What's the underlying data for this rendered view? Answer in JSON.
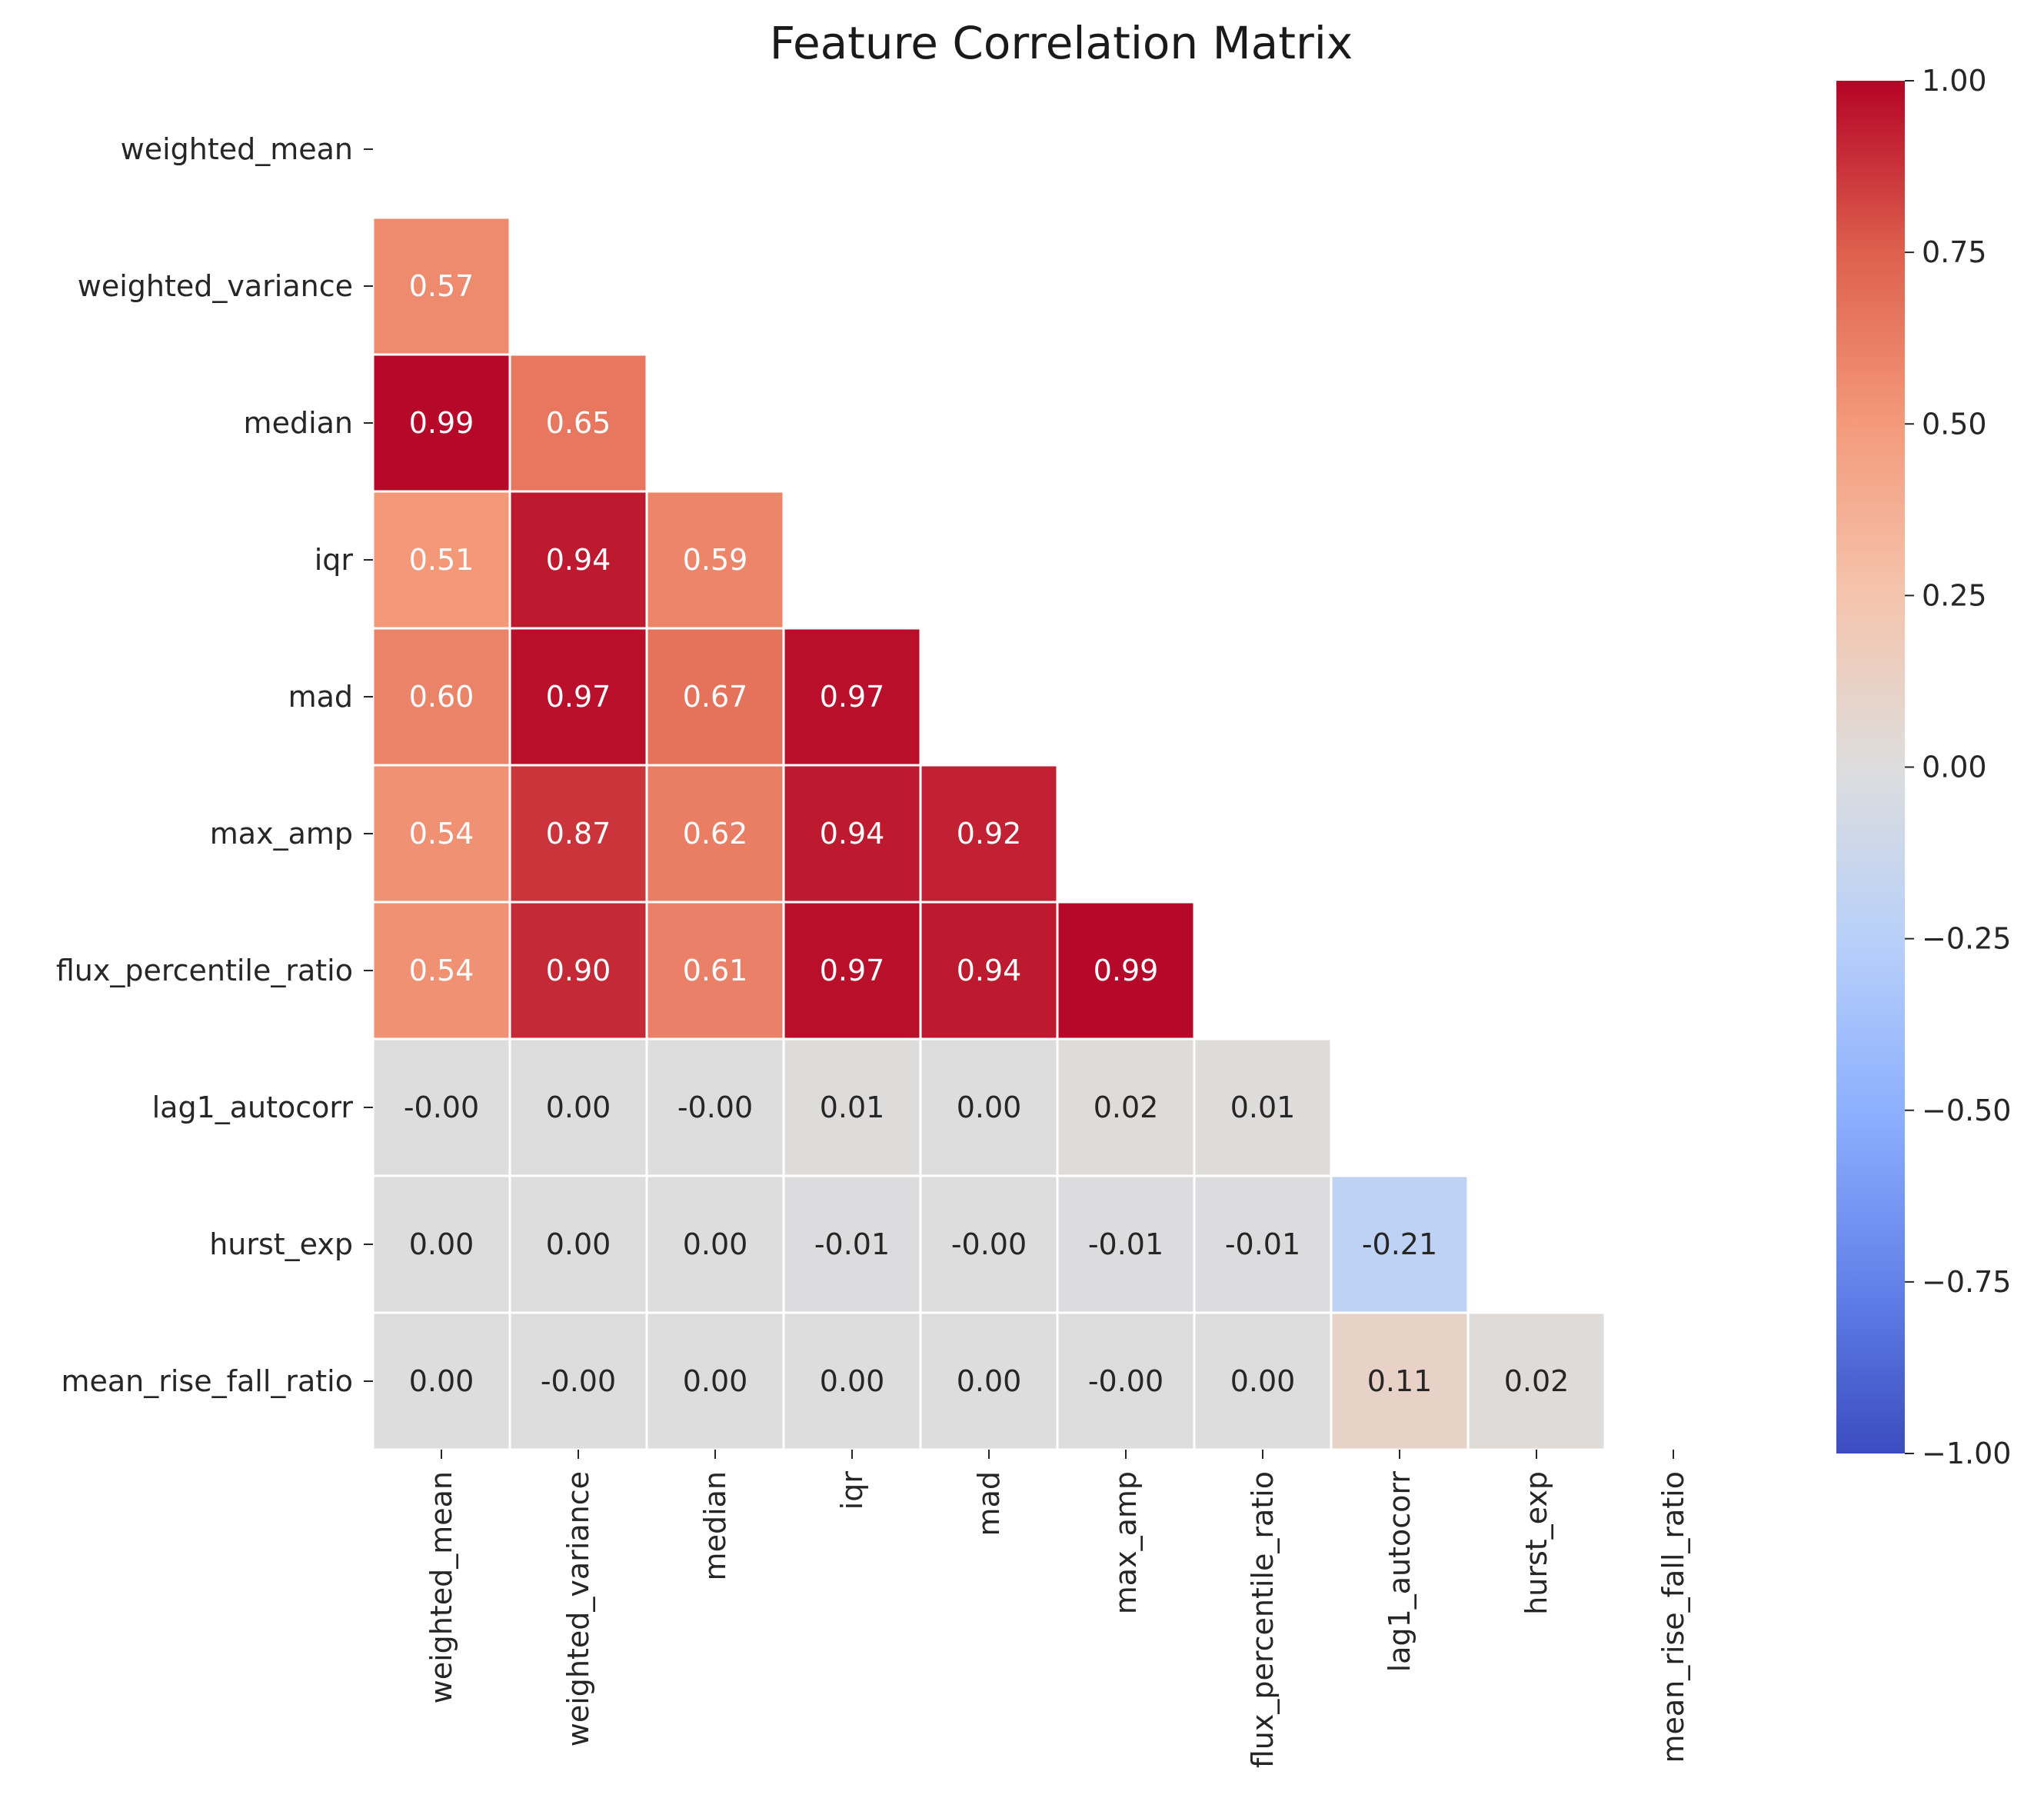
{
  "chart_data": {
    "type": "heatmap",
    "title": "Feature Correlation Matrix",
    "xlabel": "",
    "ylabel": "",
    "labels": [
      "weighted_mean",
      "weighted_variance",
      "median",
      "iqr",
      "mad",
      "max_amp",
      "flux_percentile_ratio",
      "lag1_autocorr",
      "hurst_exp",
      "mean_rise_fall_ratio"
    ],
    "mask": "upper triangle including diagonal",
    "rows": [
      {
        "row": "weighted_variance",
        "values": [
          0.57
        ],
        "labels": [
          "0.57"
        ]
      },
      {
        "row": "median",
        "values": [
          0.99,
          0.65
        ],
        "labels": [
          "0.99",
          "0.65"
        ]
      },
      {
        "row": "iqr",
        "values": [
          0.51,
          0.94,
          0.59
        ],
        "labels": [
          "0.51",
          "0.94",
          "0.59"
        ]
      },
      {
        "row": "mad",
        "values": [
          0.6,
          0.97,
          0.67,
          0.97
        ],
        "labels": [
          "0.60",
          "0.97",
          "0.67",
          "0.97"
        ]
      },
      {
        "row": "max_amp",
        "values": [
          0.54,
          0.87,
          0.62,
          0.94,
          0.92
        ],
        "labels": [
          "0.54",
          "0.87",
          "0.62",
          "0.94",
          "0.92"
        ]
      },
      {
        "row": "flux_percentile_ratio",
        "values": [
          0.54,
          0.9,
          0.61,
          0.97,
          0.94,
          0.99
        ],
        "labels": [
          "0.54",
          "0.90",
          "0.61",
          "0.97",
          "0.94",
          "0.99"
        ]
      },
      {
        "row": "lag1_autocorr",
        "values": [
          -0.0,
          0.0,
          -0.0,
          0.01,
          0.0,
          0.02,
          0.01
        ],
        "labels": [
          "-0.00",
          "0.00",
          "-0.00",
          "0.01",
          "0.00",
          "0.02",
          "0.01"
        ]
      },
      {
        "row": "hurst_exp",
        "values": [
          0.0,
          0.0,
          0.0,
          -0.01,
          -0.0,
          -0.01,
          -0.01,
          -0.21
        ],
        "labels": [
          "0.00",
          "0.00",
          "0.00",
          "-0.01",
          "-0.00",
          "-0.01",
          "-0.01",
          "-0.21"
        ]
      },
      {
        "row": "mean_rise_fall_ratio",
        "values": [
          0.0,
          -0.0,
          0.0,
          0.0,
          0.0,
          -0.0,
          0.0,
          0.11,
          0.02
        ],
        "labels": [
          "0.00",
          "-0.00",
          "0.00",
          "0.00",
          "0.00",
          "-0.00",
          "0.00",
          "0.11",
          "0.02"
        ]
      }
    ],
    "colormap": {
      "name": "coolwarm",
      "vmin": -1.0,
      "vmax": 1.0,
      "low_color": "#3b4cc0",
      "mid_color": "#dddddd",
      "high_color": "#b40426"
    },
    "colorbar": {
      "ticks": [
        1.0,
        0.75,
        0.5,
        0.25,
        0.0,
        -0.25,
        -0.5,
        -0.75,
        -1.0
      ],
      "tick_labels": [
        "1.00",
        "0.75",
        "0.50",
        "0.25",
        "0.00",
        "−0.25",
        "−0.50",
        "−0.75",
        "−1.00"
      ]
    },
    "grid": false,
    "legend": "colorbar at right"
  }
}
